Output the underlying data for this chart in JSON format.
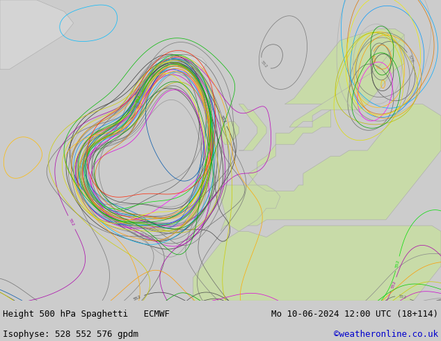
{
  "title_left": "Height 500 hPa Spaghetti   ECMWF",
  "title_right": "Mo 10-06-2024 12:00 UTC (18+114)",
  "subtitle_left": "Isophyse: 528 552 576 gpdm",
  "subtitle_right": "©weatheronline.co.uk",
  "subtitle_right_color": "#0000cc",
  "fig_width": 6.34,
  "fig_height": 4.9,
  "dpi": 100,
  "ocean_color": [
    220,
    220,
    220
  ],
  "land_green_color": [
    200,
    220,
    160
  ],
  "land_grey_color": [
    210,
    210,
    210
  ],
  "bottom_bar_color": "#cccccc",
  "text_color": "#000000",
  "font_size": 8.5,
  "map_extent_lon": [
    -58,
    38
  ],
  "map_extent_lat": [
    24,
    76
  ],
  "n_members": 51,
  "contour_levels": [
    528,
    552,
    576
  ],
  "member_colors": [
    "#606060",
    "#686868",
    "#707070",
    "#787878",
    "#808080",
    "#888888",
    "#484848",
    "#383838",
    "#989898",
    "#b0b0b0",
    "#606060",
    "#686868",
    "#707070",
    "#787878",
    "#808080",
    "#888888",
    "#484848",
    "#383838",
    "#989898",
    "#b0b0b0",
    "#606060",
    "#686868",
    "#707070",
    "#787878",
    "#808080",
    "#ff00ff",
    "#dd00dd",
    "#cc00cc",
    "#aa00aa",
    "#bb00bb",
    "#0099ff",
    "#00aaff",
    "#0077cc",
    "#0055aa",
    "#00bbff",
    "#ff8800",
    "#ff9900",
    "#ffaa00",
    "#dd7700",
    "#ffbb00",
    "#cccc00",
    "#dddd00",
    "#aaaa00",
    "#bbbb00",
    "#eeee00",
    "#00bb00",
    "#00cc00",
    "#009900",
    "#00aa00",
    "#00dd00",
    "#ff2200",
    "#cc0000",
    "#7700cc",
    "#8800ff",
    "#00dddd",
    "#00bbbb",
    "#885500",
    "#994400"
  ]
}
